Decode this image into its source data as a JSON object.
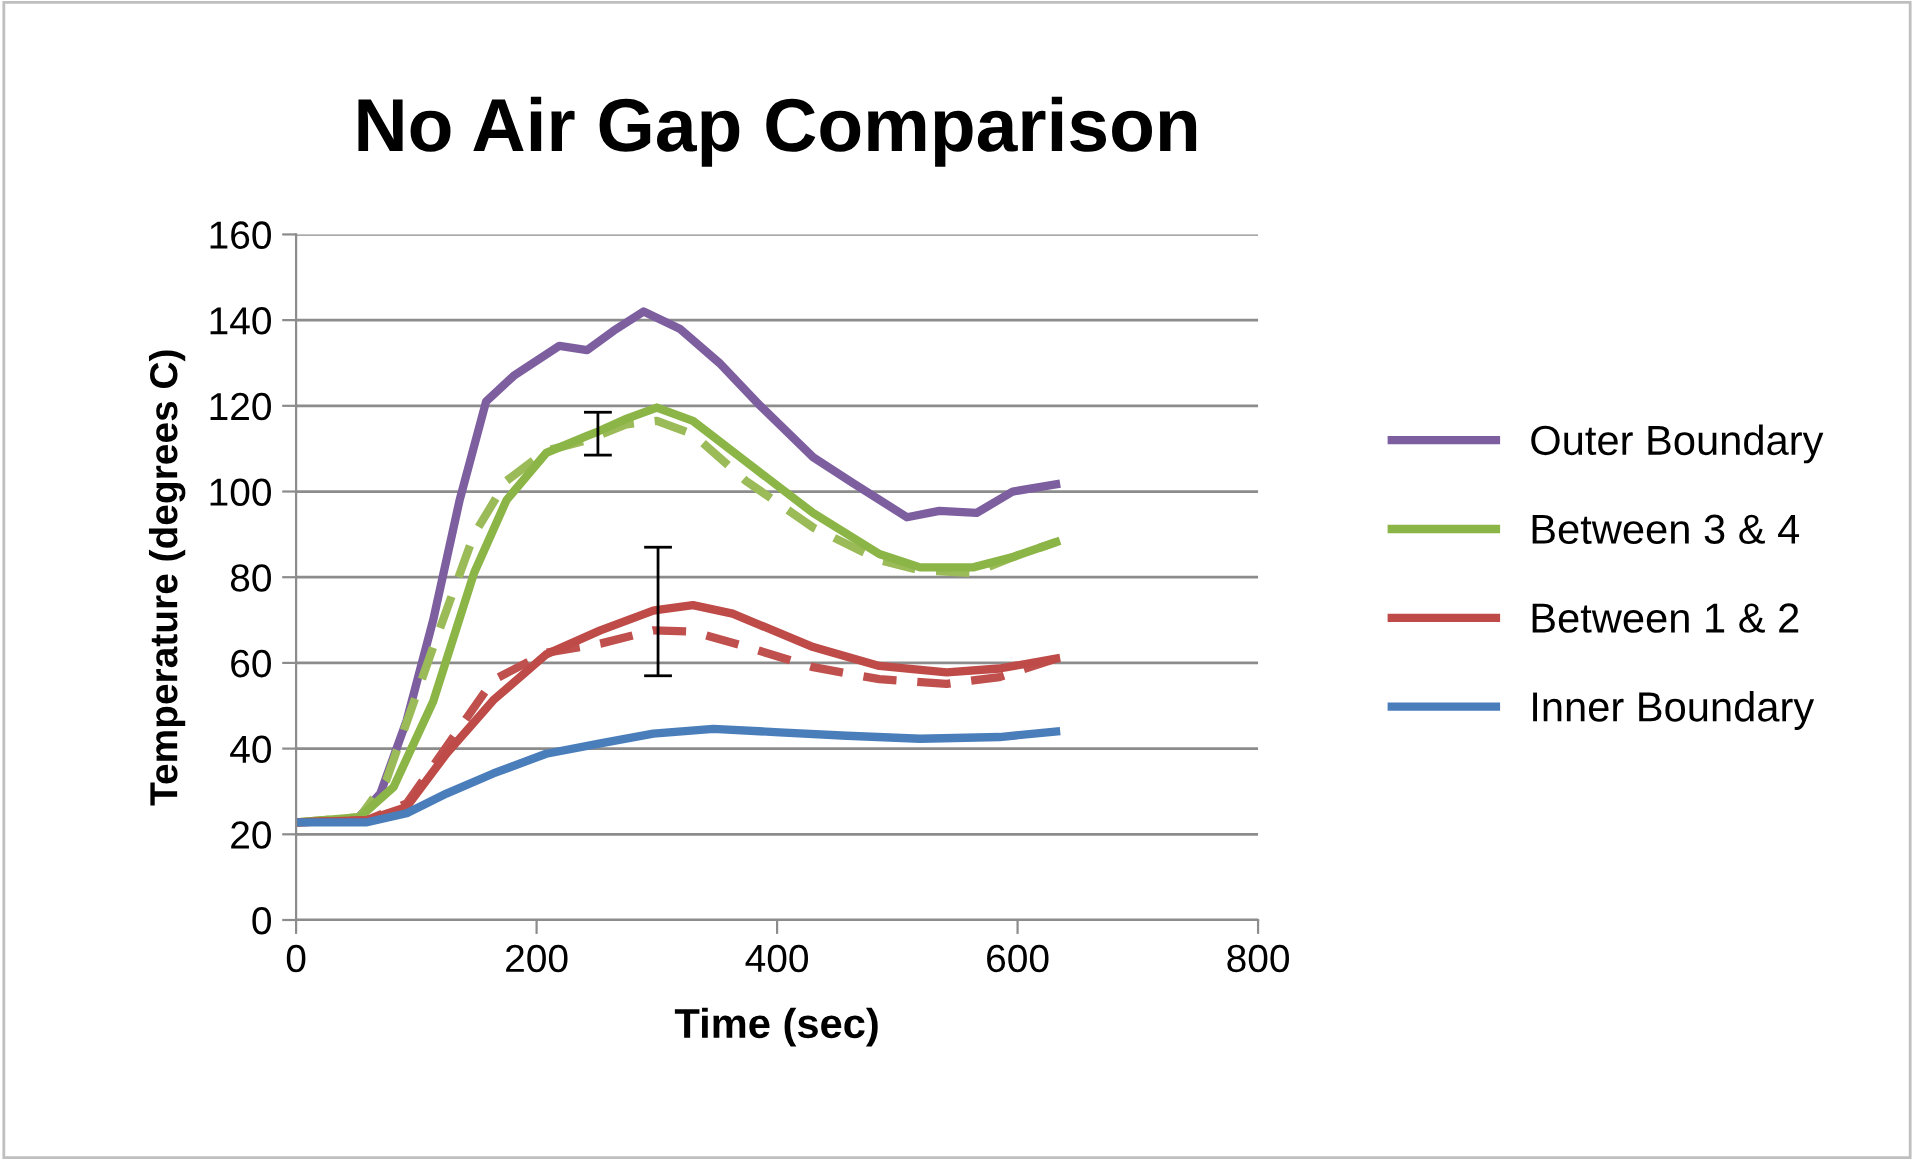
{
  "chart_data": {
    "type": "line",
    "title": "No Air Gap Comparison",
    "xlabel": "Time (sec)",
    "ylabel": "Temperature (degrees C)",
    "xlim": [
      0,
      800
    ],
    "xticks": [
      0,
      200,
      400,
      600,
      800
    ],
    "ylim": [
      0,
      160
    ],
    "yticks": [
      0,
      20,
      40,
      60,
      80,
      100,
      120,
      140,
      160
    ],
    "grid": "y",
    "legend": "right",
    "marker": "none",
    "series": [
      {
        "name": "Outer Boundary",
        "color": "#7d5fa0",
        "line_style": "solid",
        "x": [
          0,
          50,
          70,
          92,
          114,
          136,
          158,
          181,
          219,
          242,
          264,
          289,
          319,
          352,
          386,
          430,
          463,
          508,
          535,
          566,
          596,
          632
        ],
        "values": [
          22.8,
          23.3,
          29.5,
          46.6,
          70,
          98,
          121,
          127,
          134,
          133,
          137.5,
          142,
          138,
          130,
          120,
          108,
          102,
          94,
          95.5,
          95,
          100,
          101.7
        ]
      },
      {
        "color": "#9bbb59",
        "line_style": "dashed",
        "x": [
          0,
          53,
          75,
          114,
          148,
          175,
          208,
          242,
          275,
          300,
          330,
          374,
          430,
          485,
          519,
          563,
          596,
          632
        ],
        "values": [
          22.8,
          24,
          32.6,
          63.7,
          90,
          102.5,
          109.5,
          112,
          115.7,
          116.5,
          113.4,
          102.5,
          91.6,
          84,
          81.6,
          81,
          84.7,
          88.2
        ]
      },
      {
        "name": "Between 3 & 4",
        "color": "#8cb547",
        "line_style": "solid",
        "x": [
          0,
          53,
          81,
          114,
          148,
          175,
          208,
          242,
          251,
          275,
          300,
          330,
          374,
          430,
          485,
          519,
          563,
          596,
          632
        ],
        "values": [
          22.8,
          24,
          31,
          51,
          81,
          98,
          109,
          113,
          114,
          117,
          119.6,
          116.5,
          107,
          95,
          85.4,
          82.3,
          82.3,
          84.7,
          88.2
        ],
        "errors": [
          null,
          null,
          null,
          null,
          null,
          null,
          null,
          null,
          [
            108.5,
            118.5
          ],
          null,
          null,
          null,
          null,
          null,
          null,
          null,
          null,
          null,
          null
        ]
      },
      {
        "color": "#c0504d",
        "line_style": "dashed",
        "x": [
          0,
          59,
          92,
          125,
          164,
          208,
          253,
          297,
          330,
          375,
          430,
          485,
          541,
          585,
          632
        ],
        "values": [
          22.8,
          23.3,
          27.2,
          40.4,
          56,
          62.4,
          64.5,
          67.6,
          67.3,
          63.7,
          59,
          56.2,
          55.1,
          56.7,
          61
        ]
      },
      {
        "name": "Between 1 & 2",
        "color": "#be4b48",
        "line_style": "solid",
        "x": [
          0,
          59,
          92,
          125,
          164,
          208,
          253,
          297,
          301,
          330,
          363,
          430,
          485,
          541,
          585,
          632
        ],
        "values": [
          22.8,
          23.3,
          26.4,
          38.8,
          51.3,
          62,
          67.6,
          72.2,
          72.4,
          73.5,
          71.5,
          63.7,
          59.3,
          57.8,
          58.7,
          61
        ],
        "errors": [
          null,
          null,
          null,
          null,
          null,
          null,
          null,
          null,
          [
            57,
            87
          ],
          null,
          null,
          null,
          null,
          null,
          null,
          null
        ]
      },
      {
        "name": "Inner Boundary",
        "color": "#4a7ebb",
        "line_style": "solid",
        "x": [
          0,
          59,
          92,
          125,
          164,
          208,
          253,
          297,
          347,
          402,
          458,
          519,
          585,
          632
        ],
        "values": [
          22.8,
          22.8,
          24.9,
          29.5,
          34.2,
          38.8,
          41.2,
          43.5,
          44.6,
          43.8,
          43,
          42.3,
          42.7,
          44
        ]
      }
    ]
  }
}
